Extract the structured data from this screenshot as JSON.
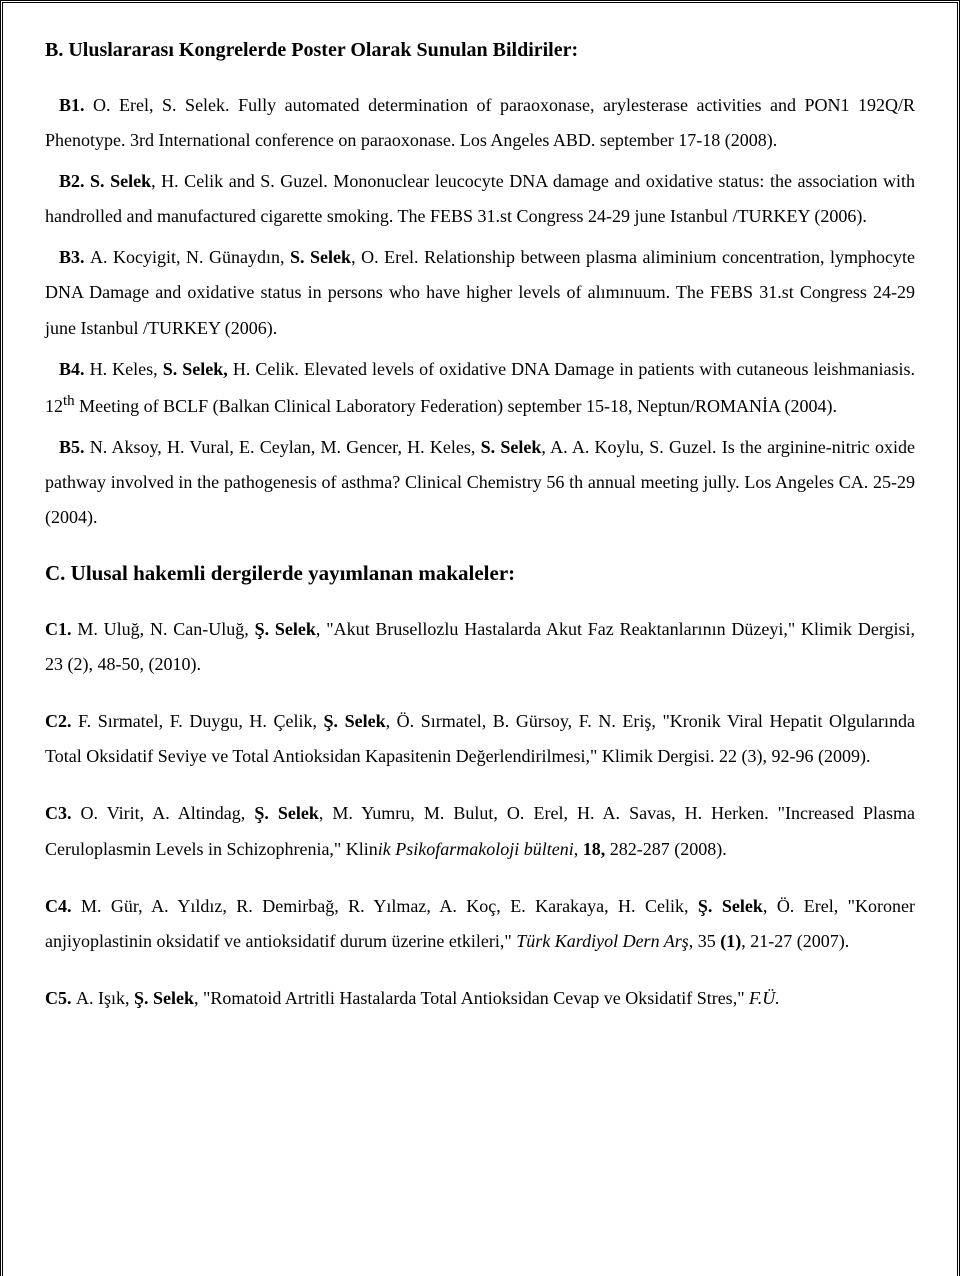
{
  "sectionB": {
    "heading": "B. Uluslararası Kongrelerde Poster Olarak Sunulan Bildiriler:",
    "entries": {
      "b1": {
        "label": "B1. ",
        "t1": "O. Erel, S. Selek. ",
        "t2": "Fully automated determination of paraoxonase, arylesterase activities and PON1 192Q/R Phenotype. 3rd International conference on paraoxonase. Los Angeles ABD. september 17-18 (2008)."
      },
      "b2": {
        "label": "B2. ",
        "t1": "S. Selek",
        "t2": ", H. Celik and S. Guzel. Mononuclear leucocyte DNA damage and oxidative status: the association with handrolled and manufactured cigarette smoking. The FEBS 31.st Congress 24-29 june Istanbul /TURKEY (2006)."
      },
      "b3": {
        "label": "B3. ",
        "t1": "A. Kocyigit, N. Günaydın, ",
        "t2": "S. Selek",
        "t3": ", O. Erel. Relationship between plasma aliminium concentration, lymphocyte DNA Damage and oxidative status in persons who have higher levels of alımınuum. The FEBS 31.st Congress 24-29 june Istanbul /TURKEY (2006)."
      },
      "b4": {
        "label": "B4. ",
        "t1": "H. Keles, ",
        "t2": "S. Selek, ",
        "t3": "H. Celik. Elevated levels of oxidative DNA Damage in patients with cutaneous leishmaniasis. 12",
        "sup": "th",
        "t4": " Meeting of BCLF (Balkan Clinical Laboratory Federation) september 15-18, Neptun/ROMANİA (2004)."
      },
      "b5": {
        "label": "B5. ",
        "t1": "N. Aksoy, H. Vural, E. Ceylan, M. Gencer, H. Keles, ",
        "t2": "S. Selek",
        "t3": ", A. A. Koylu, S. Guzel. Is the arginine-nitric oxide pathway involved in the pathogenesis of asthma? Clinical Chemistry 56 th annual meeting jully. Los Angeles CA. 25-29 (2004)."
      }
    }
  },
  "sectionC": {
    "heading": "C. Ulusal hakemli dergilerde yayımlanan makaleler:",
    "entries": {
      "c1": {
        "label": "C1. ",
        "t1": "M. Uluğ, N. Can-Uluğ, ",
        "t2": "Ş. Selek",
        "t3": ", \"Akut Brusellozlu Hastalarda Akut Faz Reaktanlarının Düzeyi,\" Klimik Dergisi, 23 (2), 48-50, (2010)."
      },
      "c2": {
        "label": "C2. ",
        "t1": "F. Sırmatel, F. Duygu, H. Çelik, ",
        "t2": "Ş. Selek",
        "t3": ", Ö. Sırmatel, B. Gürsoy, F. N. Eriş, \"Kronik Viral Hepatit Olgularında Total Oksidatif Seviye ve Total Antioksidan Kapasitenin Değerlendirilmesi,\" Klimik Dergisi. 22 (3), 92-96 (2009)."
      },
      "c3": {
        "label": "C3. ",
        "t1": "O. Virit, A. Altindag, ",
        "t2": "Ş. Selek",
        "t3": ", M. Yumru, M. Bulut, O. Erel, H. A. Savas, H. Herken. \"Increased Plasma Ceruloplasmin Levels in Schizophrenia,\" Klin",
        "t4": "ik Psikofarmakoloji bülteni",
        "t5": ", ",
        "t6": "18, ",
        "t7": "282-287 (2008)."
      },
      "c4": {
        "label": "C4. ",
        "t1": "M. Gür, A. Yıldız, R. Demirbağ, R. Yılmaz, A. Koç, E. Karakaya, H. Celik, ",
        "t2": "Ş. Selek",
        "t3": ", Ö. Erel, \"Koroner anjiyoplastinin oksidatif ve antioksidatif durum üzerine etkileri,\" ",
        "t4": "Türk Kardiyol Dern Arş",
        "t5": ", 35 ",
        "t6": "(1)",
        "t7": ", 21-27 (2007)."
      },
      "c5": {
        "label": "C5. ",
        "t1": "A. Işık, ",
        "t2": "Ş. Selek",
        "t3": ", \"Romatoid Artritli Hastalarda Total Antioksidan Cevap ve Oksidatif Stres,\" ",
        "t4": "F.Ü."
      }
    }
  }
}
